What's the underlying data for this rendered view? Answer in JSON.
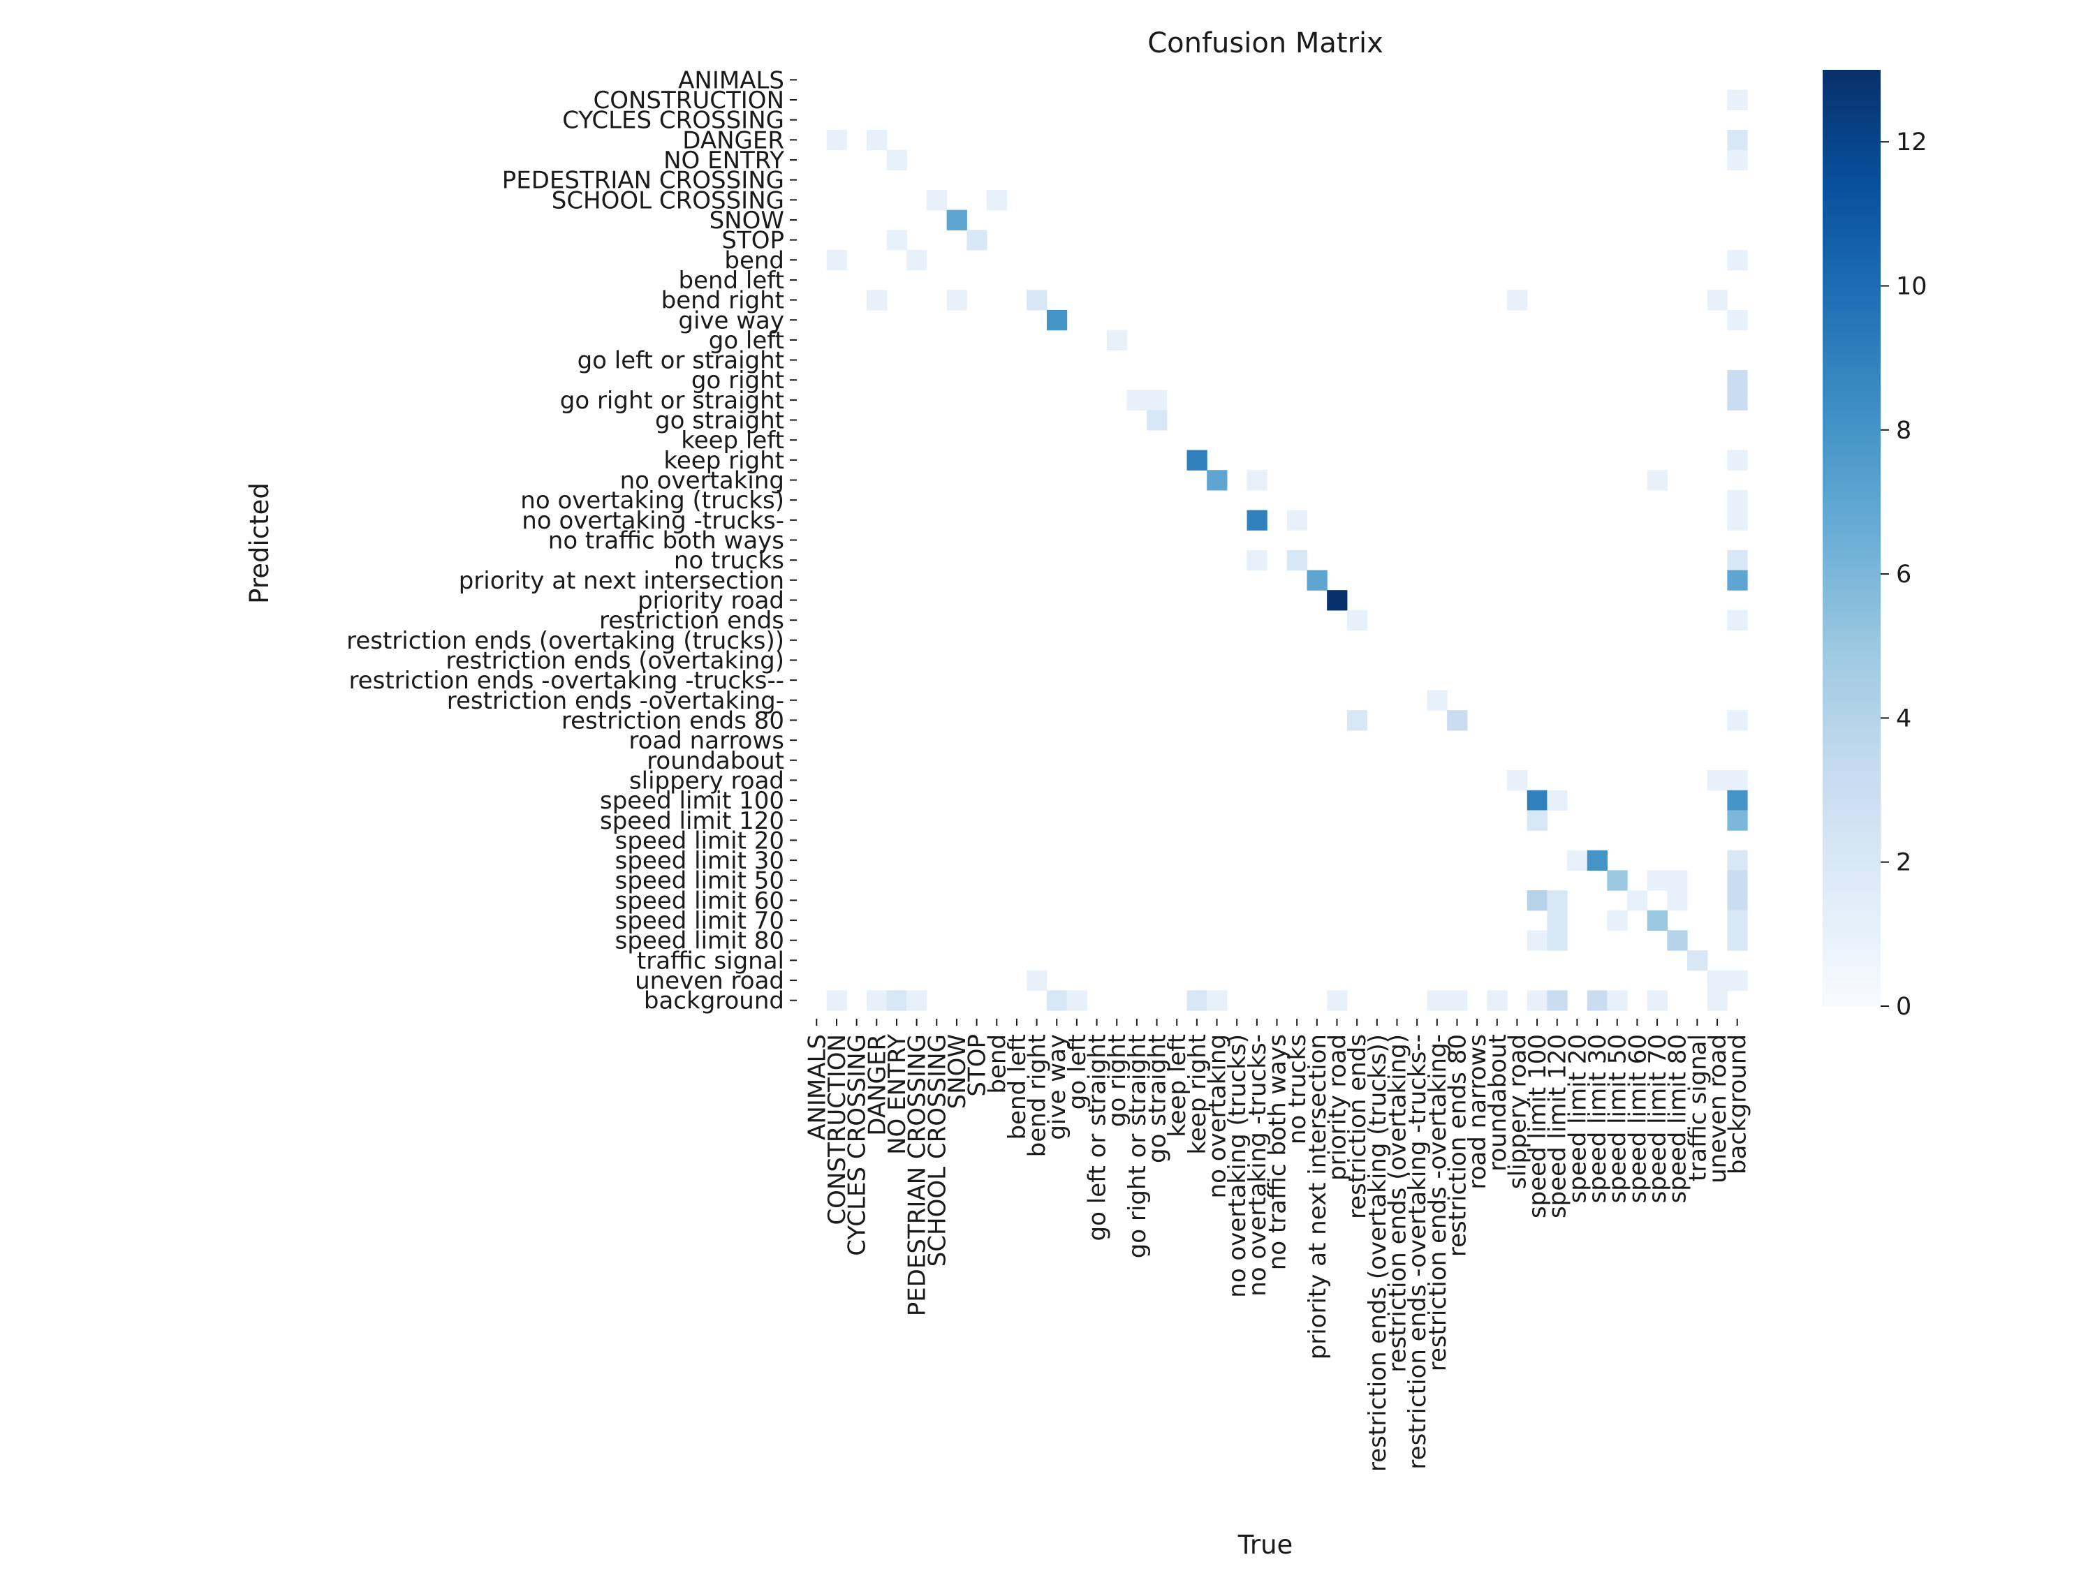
{
  "chart_data": {
    "type": "heatmap",
    "title": "Confusion Matrix",
    "xlabel": "True",
    "ylabel": "Predicted",
    "labels": [
      "ANIMALS",
      "CONSTRUCTION",
      "CYCLES CROSSING",
      "DANGER",
      "NO ENTRY",
      "PEDESTRIAN CROSSING",
      "SCHOOL CROSSING",
      "SNOW",
      "STOP",
      "bend",
      "bend left",
      "bend right",
      "give way",
      "go left",
      "go left or straight",
      "go right",
      "go right or straight",
      "go straight",
      "keep left",
      "keep right",
      "no overtaking",
      "no overtaking (trucks)",
      "no overtaking -trucks-",
      "no traffic both ways",
      "no trucks",
      "priority at next intersection",
      "priority road",
      "restriction ends",
      "restriction ends (overtaking (trucks))",
      "restriction ends (overtaking)",
      "restriction ends -overtaking -trucks--",
      "restriction ends -overtaking-",
      "restriction ends 80",
      "road narrows",
      "roundabout",
      "slippery road",
      "speed limit 100",
      "speed limit 120",
      "speed limit 20",
      "speed limit 30",
      "speed limit 50",
      "speed limit 60",
      "speed limit 70",
      "speed limit 80",
      "traffic signal",
      "uneven road",
      "background"
    ],
    "cells": [
      {
        "pred": 1,
        "true": 46,
        "value": 1
      },
      {
        "pred": 3,
        "true": 1,
        "value": 1
      },
      {
        "pred": 3,
        "true": 3,
        "value": 1
      },
      {
        "pred": 3,
        "true": 46,
        "value": 2
      },
      {
        "pred": 4,
        "true": 4,
        "value": 1
      },
      {
        "pred": 4,
        "true": 46,
        "value": 1
      },
      {
        "pred": 6,
        "true": 6,
        "value": 1
      },
      {
        "pred": 6,
        "true": 9,
        "value": 1
      },
      {
        "pred": 7,
        "true": 7,
        "value": 7
      },
      {
        "pred": 8,
        "true": 4,
        "value": 1
      },
      {
        "pred": 8,
        "true": 8,
        "value": 2
      },
      {
        "pred": 9,
        "true": 1,
        "value": 1
      },
      {
        "pred": 9,
        "true": 5,
        "value": 1
      },
      {
        "pred": 9,
        "true": 46,
        "value": 1
      },
      {
        "pred": 11,
        "true": 3,
        "value": 1
      },
      {
        "pred": 11,
        "true": 7,
        "value": 1
      },
      {
        "pred": 11,
        "true": 11,
        "value": 2
      },
      {
        "pred": 11,
        "true": 35,
        "value": 1
      },
      {
        "pred": 11,
        "true": 45,
        "value": 1
      },
      {
        "pred": 12,
        "true": 12,
        "value": 8
      },
      {
        "pred": 12,
        "true": 46,
        "value": 1
      },
      {
        "pred": 13,
        "true": 15,
        "value": 1
      },
      {
        "pred": 15,
        "true": 46,
        "value": 3
      },
      {
        "pred": 16,
        "true": 16,
        "value": 1
      },
      {
        "pred": 16,
        "true": 17,
        "value": 1
      },
      {
        "pred": 16,
        "true": 46,
        "value": 3
      },
      {
        "pred": 17,
        "true": 17,
        "value": 2
      },
      {
        "pred": 19,
        "true": 19,
        "value": 9
      },
      {
        "pred": 19,
        "true": 46,
        "value": 1
      },
      {
        "pred": 20,
        "true": 20,
        "value": 7
      },
      {
        "pred": 20,
        "true": 22,
        "value": 1
      },
      {
        "pred": 20,
        "true": 42,
        "value": 1
      },
      {
        "pred": 21,
        "true": 46,
        "value": 1
      },
      {
        "pred": 22,
        "true": 22,
        "value": 9
      },
      {
        "pred": 22,
        "true": 24,
        "value": 1
      },
      {
        "pred": 22,
        "true": 46,
        "value": 1
      },
      {
        "pred": 24,
        "true": 22,
        "value": 1
      },
      {
        "pred": 24,
        "true": 24,
        "value": 2
      },
      {
        "pred": 24,
        "true": 46,
        "value": 2
      },
      {
        "pred": 25,
        "true": 25,
        "value": 7
      },
      {
        "pred": 25,
        "true": 46,
        "value": 7
      },
      {
        "pred": 26,
        "true": 26,
        "value": 13
      },
      {
        "pred": 27,
        "true": 27,
        "value": 1
      },
      {
        "pred": 27,
        "true": 46,
        "value": 1
      },
      {
        "pred": 31,
        "true": 31,
        "value": 1
      },
      {
        "pred": 32,
        "true": 27,
        "value": 2
      },
      {
        "pred": 32,
        "true": 32,
        "value": 3
      },
      {
        "pred": 32,
        "true": 46,
        "value": 1
      },
      {
        "pred": 35,
        "true": 35,
        "value": 1
      },
      {
        "pred": 35,
        "true": 45,
        "value": 1
      },
      {
        "pred": 35,
        "true": 46,
        "value": 1
      },
      {
        "pred": 36,
        "true": 36,
        "value": 9
      },
      {
        "pred": 36,
        "true": 37,
        "value": 1
      },
      {
        "pred": 36,
        "true": 46,
        "value": 8
      },
      {
        "pred": 37,
        "true": 36,
        "value": 2
      },
      {
        "pred": 37,
        "true": 46,
        "value": 6
      },
      {
        "pred": 39,
        "true": 38,
        "value": 1
      },
      {
        "pred": 39,
        "true": 39,
        "value": 8
      },
      {
        "pred": 39,
        "true": 46,
        "value": 2
      },
      {
        "pred": 40,
        "true": 40,
        "value": 5
      },
      {
        "pred": 40,
        "true": 42,
        "value": 1
      },
      {
        "pred": 40,
        "true": 43,
        "value": 1
      },
      {
        "pred": 40,
        "true": 46,
        "value": 3
      },
      {
        "pred": 41,
        "true": 36,
        "value": 4
      },
      {
        "pred": 41,
        "true": 37,
        "value": 2
      },
      {
        "pred": 41,
        "true": 41,
        "value": 1
      },
      {
        "pred": 41,
        "true": 43,
        "value": 1
      },
      {
        "pred": 41,
        "true": 46,
        "value": 3
      },
      {
        "pred": 42,
        "true": 37,
        "value": 2
      },
      {
        "pred": 42,
        "true": 40,
        "value": 1
      },
      {
        "pred": 42,
        "true": 42,
        "value": 5
      },
      {
        "pred": 42,
        "true": 46,
        "value": 2
      },
      {
        "pred": 43,
        "true": 36,
        "value": 1
      },
      {
        "pred": 43,
        "true": 37,
        "value": 2
      },
      {
        "pred": 43,
        "true": 43,
        "value": 4
      },
      {
        "pred": 43,
        "true": 46,
        "value": 2
      },
      {
        "pred": 44,
        "true": 44,
        "value": 2
      },
      {
        "pred": 45,
        "true": 11,
        "value": 1
      },
      {
        "pred": 45,
        "true": 45,
        "value": 1
      },
      {
        "pred": 45,
        "true": 46,
        "value": 1
      },
      {
        "pred": 46,
        "true": 1,
        "value": 1
      },
      {
        "pred": 46,
        "true": 3,
        "value": 1
      },
      {
        "pred": 46,
        "true": 4,
        "value": 2
      },
      {
        "pred": 46,
        "true": 5,
        "value": 1
      },
      {
        "pred": 46,
        "true": 12,
        "value": 2
      },
      {
        "pred": 46,
        "true": 13,
        "value": 1
      },
      {
        "pred": 46,
        "true": 19,
        "value": 2
      },
      {
        "pred": 46,
        "true": 20,
        "value": 1
      },
      {
        "pred": 46,
        "true": 26,
        "value": 1
      },
      {
        "pred": 46,
        "true": 31,
        "value": 1
      },
      {
        "pred": 46,
        "true": 32,
        "value": 1
      },
      {
        "pred": 46,
        "true": 34,
        "value": 1
      },
      {
        "pred": 46,
        "true": 36,
        "value": 1
      },
      {
        "pred": 46,
        "true": 37,
        "value": 3
      },
      {
        "pred": 46,
        "true": 39,
        "value": 3
      },
      {
        "pred": 46,
        "true": 40,
        "value": 1
      },
      {
        "pred": 46,
        "true": 42,
        "value": 1
      },
      {
        "pred": 46,
        "true": 45,
        "value": 1
      }
    ],
    "vmin": 0,
    "vmax": 13,
    "colorbar_ticks": [
      0,
      2,
      4,
      6,
      8,
      10,
      12
    ],
    "colormap": "Blues",
    "grid": false
  }
}
